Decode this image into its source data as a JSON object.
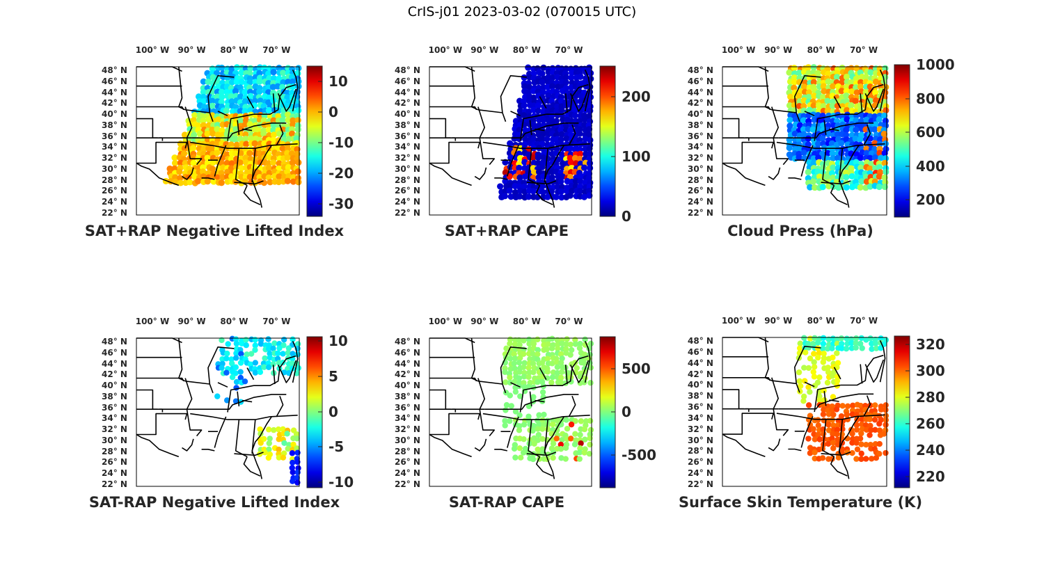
{
  "figure": {
    "title": "CrIS-j01 2023-03-02 (070015 UTC)"
  },
  "map_axes": {
    "lon_ticks": [
      "100° W",
      "90° W",
      "80° W",
      "70° W"
    ],
    "lat_ticks": [
      "48° N",
      "46° N",
      "44° N",
      "42° N",
      "40° N",
      "38° N",
      "36° N",
      "34° N",
      "32° N",
      "30° N",
      "28° N",
      "26° N",
      "24° N",
      "22° N"
    ]
  },
  "chart_data": [
    {
      "type": "heatmap",
      "title": "SAT+RAP Negative Lifted Index",
      "colorbar": {
        "ticks": [
          "10",
          "0",
          "-10",
          "-20",
          "-30"
        ],
        "tick_values": [
          10,
          0,
          -10,
          -20,
          -30
        ],
        "clim": [
          -34,
          15
        ]
      },
      "coverage": "eastern third of US, north to south",
      "dominant_values": "north -15 to -20, south 0 to 5"
    },
    {
      "type": "heatmap",
      "title": "SAT+RAP CAPE",
      "colorbar": {
        "ticks": [
          "200",
          "100",
          "0"
        ],
        "tick_values": [
          200,
          100,
          0
        ],
        "clim": [
          0,
          250
        ]
      },
      "coverage": "eastern US swath",
      "dominant_values": "mostly 0, scattered 150-250 near Gulf and Carolinas"
    },
    {
      "type": "heatmap",
      "title": "Cloud Press (hPa)",
      "colorbar": {
        "ticks": [
          "1000",
          "800",
          "600",
          "400",
          "200"
        ],
        "tick_values": [
          1000,
          800,
          600,
          400,
          200
        ],
        "clim": [
          100,
          1000
        ]
      },
      "coverage": "eastern US swath",
      "dominant_values": "north 500-800, central band 200-300, southeast 400-800"
    },
    {
      "type": "heatmap",
      "title": "SAT-RAP Negative Lifted Index",
      "colorbar": {
        "ticks": [
          "10",
          "5",
          "0",
          "-5",
          "-10"
        ],
        "tick_values": [
          10,
          5,
          0,
          -5,
          -10
        ],
        "clim": [
          -11,
          11
        ]
      },
      "coverage": "sparse: Great Lakes, northeast, southeast coast",
      "dominant_values": "-3 to -8 north, 0 to 3 southeast"
    },
    {
      "type": "heatmap",
      "title": "SAT-RAP CAPE",
      "colorbar": {
        "ticks": [
          "500",
          "0",
          "-500"
        ],
        "tick_values": [
          500,
          0,
          -500
        ],
        "clim": [
          -850,
          850
        ]
      },
      "coverage": "sparse eastern US",
      "dominant_values": "mostly near 0, a few 200-500 near Gulf coast"
    },
    {
      "type": "heatmap",
      "title": "Surface Skin Temperature (K)",
      "colorbar": {
        "ticks": [
          "320",
          "300",
          "280",
          "260",
          "240",
          "220"
        ],
        "tick_values": [
          320,
          300,
          280,
          260,
          240,
          220
        ],
        "clim": [
          210,
          328
        ]
      },
      "coverage": "sparse: north and southeast",
      "dominant_values": "north 255-275 K, southeast 290-300 K"
    }
  ],
  "colors": {
    "jet_dark_blue": "#00008f",
    "jet_blue": "#0000ff",
    "jet_cyan": "#00ffff",
    "jet_yellow": "#ffff00",
    "jet_red": "#ff0000",
    "jet_dark_red": "#800000"
  }
}
